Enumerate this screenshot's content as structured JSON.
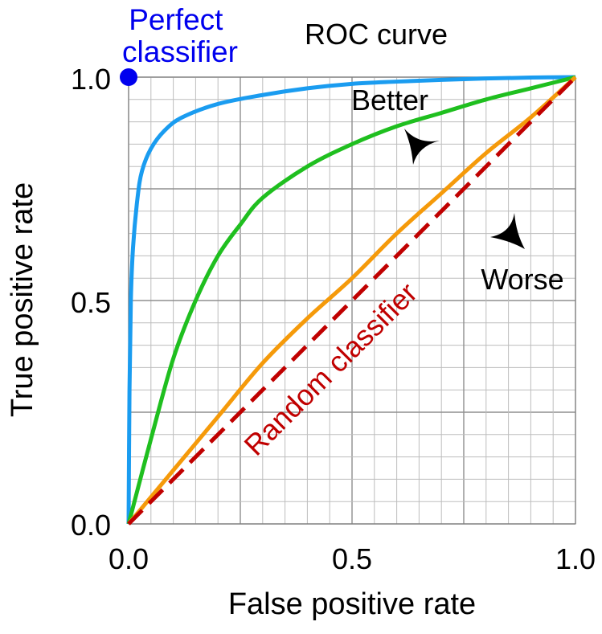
{
  "chart_data": {
    "type": "line",
    "title": "ROC curve",
    "xlabel": "False positive rate",
    "ylabel": "True positive rate",
    "xlim": [
      0,
      1
    ],
    "ylim": [
      0,
      1
    ],
    "x_ticks": [
      "0.0",
      "0.5",
      "1.0"
    ],
    "y_ticks": [
      "0.0",
      "0.5",
      "1.0"
    ],
    "grid": true,
    "series": [
      {
        "color": "#1a9cf0",
        "x": [
          0,
          0.002,
          0.005,
          0.01,
          0.02,
          0.03,
          0.05,
          0.08,
          0.12,
          0.2,
          0.3,
          0.4,
          0.5,
          0.6,
          0.7,
          0.8,
          0.9,
          1.0
        ],
        "y": [
          0,
          0.3,
          0.5,
          0.62,
          0.73,
          0.79,
          0.84,
          0.88,
          0.91,
          0.94,
          0.96,
          0.975,
          0.985,
          0.99,
          0.994,
          0.997,
          0.999,
          1.0
        ]
      },
      {
        "color": "#1fbf1f",
        "x": [
          0,
          0.05,
          0.1,
          0.15,
          0.2,
          0.25,
          0.3,
          0.4,
          0.5,
          0.6,
          0.7,
          0.8,
          0.9,
          1.0
        ],
        "y": [
          0,
          0.19,
          0.37,
          0.5,
          0.6,
          0.67,
          0.73,
          0.8,
          0.85,
          0.89,
          0.92,
          0.95,
          0.975,
          1.0
        ]
      },
      {
        "color": "#f59a0a",
        "x": [
          0,
          0.1,
          0.2,
          0.3,
          0.4,
          0.5,
          0.6,
          0.7,
          0.8,
          0.9,
          1.0
        ],
        "y": [
          0,
          0.12,
          0.24,
          0.36,
          0.46,
          0.55,
          0.65,
          0.74,
          0.83,
          0.91,
          1.0
        ]
      },
      {
        "name": "Random classifier",
        "color": "#c00000",
        "dashed": true,
        "x": [
          0,
          1
        ],
        "y": [
          0,
          1
        ]
      }
    ],
    "point": {
      "label": "Perfect classifier",
      "x": 0,
      "y": 1,
      "color": "#0000ee"
    },
    "annotations": [
      {
        "text": "Better"
      },
      {
        "text": "Worse"
      }
    ]
  }
}
